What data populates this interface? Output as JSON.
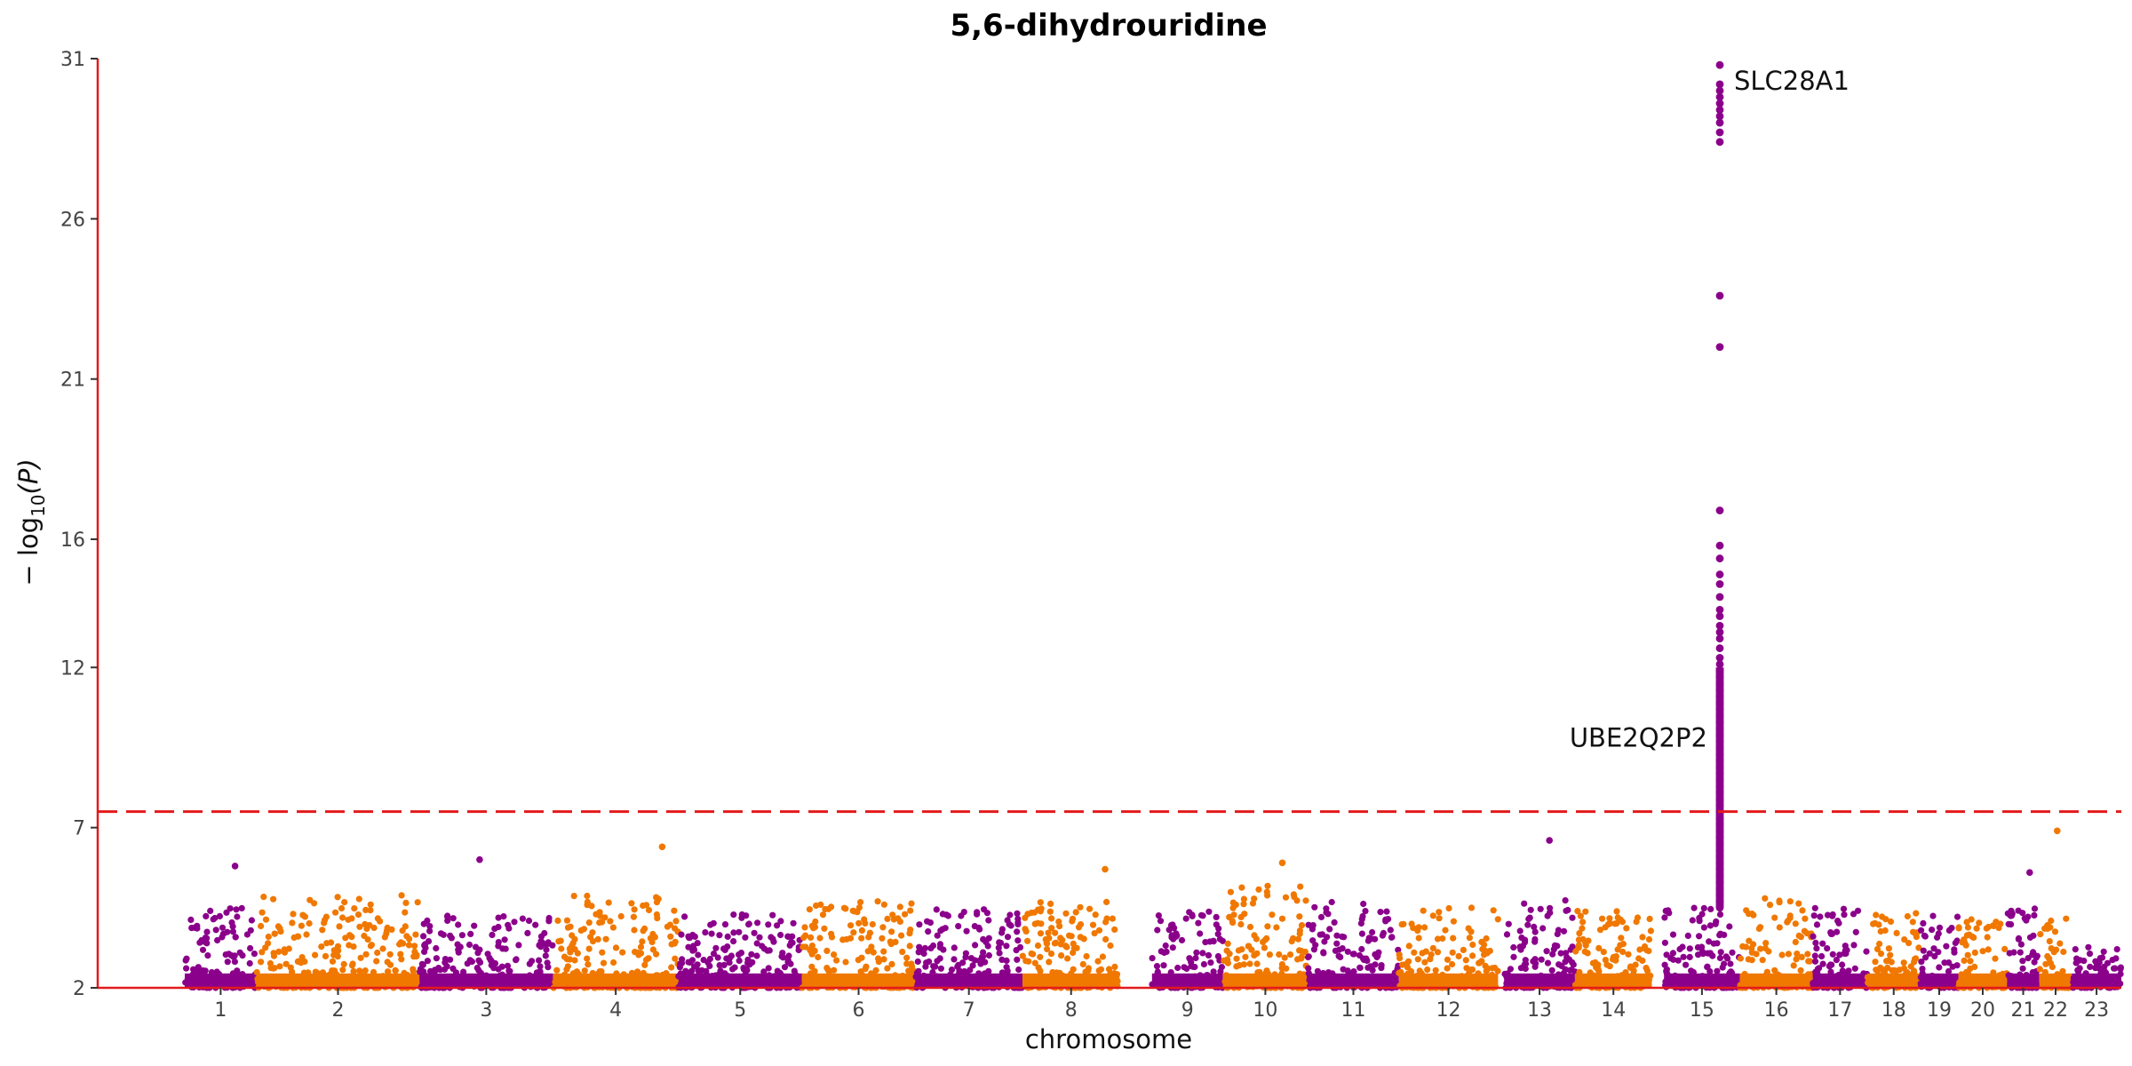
{
  "chart_data": {
    "type": "scatter",
    "subtype": "manhattan",
    "title": "5,6-dihydrouridine",
    "xlabel": "chromosome",
    "ylabel_prefix": "− log",
    "ylabel_sub": "10",
    "ylabel_suffix": "(P)",
    "ylim": [
      2,
      31
    ],
    "yticks": [
      2,
      7,
      12,
      16,
      21,
      26,
      31
    ],
    "grid": false,
    "legend": "none",
    "significance_threshold": 7.5,
    "colors": {
      "odd": "#8b008b",
      "even": "#f07800",
      "threshold": "#e31a1c",
      "axis": "#e31a1c"
    },
    "chromosomes": [
      {
        "label": "1",
        "start": 0,
        "end": 0.0785,
        "gap_left": 0.043
      },
      {
        "label": "2",
        "start": 0.0785,
        "end": 0.159
      },
      {
        "label": "3",
        "start": 0.159,
        "end": 0.225
      },
      {
        "label": "4",
        "start": 0.225,
        "end": 0.287
      },
      {
        "label": "5",
        "start": 0.287,
        "end": 0.348
      },
      {
        "label": "6",
        "start": 0.348,
        "end": 0.404
      },
      {
        "label": "7",
        "start": 0.404,
        "end": 0.457
      },
      {
        "label": "8",
        "start": 0.457,
        "end": 0.505
      },
      {
        "label": "9",
        "start": 0.505,
        "end": 0.556,
        "gap_left": 0.016
      },
      {
        "label": "10",
        "start": 0.556,
        "end": 0.598
      },
      {
        "label": "11",
        "start": 0.598,
        "end": 0.643
      },
      {
        "label": "12",
        "start": 0.643,
        "end": 0.692
      },
      {
        "label": "13",
        "start": 0.692,
        "end": 0.73,
        "gap_left": 0.003
      },
      {
        "label": "14",
        "start": 0.73,
        "end": 0.768
      },
      {
        "label": "15",
        "start": 0.768,
        "end": 0.8115,
        "gap_left": 0.006
      },
      {
        "label": "16",
        "start": 0.8115,
        "end": 0.8475
      },
      {
        "label": "17",
        "start": 0.8475,
        "end": 0.8745
      },
      {
        "label": "18",
        "start": 0.8745,
        "end": 0.9005
      },
      {
        "label": "19",
        "start": 0.9005,
        "end": 0.9195
      },
      {
        "label": "20",
        "start": 0.9195,
        "end": 0.9435
      },
      {
        "label": "21",
        "start": 0.9435,
        "end": 0.9595
      },
      {
        "label": "22",
        "start": 0.9595,
        "end": 0.9755
      },
      {
        "label": "23",
        "start": 0.9755,
        "end": 1.0
      }
    ],
    "background_max": [
      4.5,
      4.9,
      4.4,
      4.9,
      4.3,
      4.7,
      4.5,
      4.7,
      4.4,
      5.2,
      4.7,
      4.5,
      4.8,
      4.4,
      4.5,
      4.8,
      4.5,
      4.4,
      4.3,
      4.2,
      4.5,
      4.2,
      3.3
    ],
    "peak_points": [
      {
        "chrom": "1",
        "pos": 0.7,
        "y": 5.8
      },
      {
        "chrom": "3",
        "pos": 0.45,
        "y": 6.0
      },
      {
        "chrom": "4",
        "pos": 0.87,
        "y": 6.4
      },
      {
        "chrom": "8",
        "pos": 0.85,
        "y": 5.7
      },
      {
        "chrom": "10",
        "pos": 0.7,
        "y": 5.9
      },
      {
        "chrom": "13",
        "pos": 0.64,
        "y": 6.6
      },
      {
        "chrom": "21",
        "pos": 0.7,
        "y": 5.6
      },
      {
        "chrom": "22",
        "pos": 0.55,
        "y": 6.9
      }
    ],
    "hit_locus": {
      "chrom": "15",
      "pos": 0.735,
      "y_values": [
        30.8,
        30.2,
        30.0,
        29.8,
        29.6,
        29.4,
        29.2,
        29.0,
        28.7,
        28.4,
        23.6,
        22.0,
        16.9,
        15.8,
        15.4,
        14.9,
        14.6,
        14.2,
        13.8,
        13.6,
        13.3,
        13.1,
        12.9,
        12.6,
        12.3,
        12.1,
        11.9,
        11.7,
        11.5,
        11.3,
        11.1,
        10.9,
        10.7,
        10.5,
        10.3,
        10.1,
        9.9,
        9.7,
        9.5,
        9.3,
        9.1,
        8.9,
        8.7,
        8.5,
        8.3,
        8.1,
        7.9,
        7.7,
        7.5,
        7.3,
        7.1,
        6.9,
        6.7,
        6.5,
        6.3,
        6.1,
        5.9,
        5.7,
        5.5,
        5.3,
        5.1,
        4.9,
        4.7,
        4.5
      ]
    },
    "annotations": [
      {
        "text": "SLC28A1",
        "x_chrom": "15",
        "y": 30.3,
        "side": "right"
      },
      {
        "text": "UBE2Q2P2",
        "x_chrom": "15",
        "y": 9.8,
        "side": "left"
      }
    ]
  }
}
